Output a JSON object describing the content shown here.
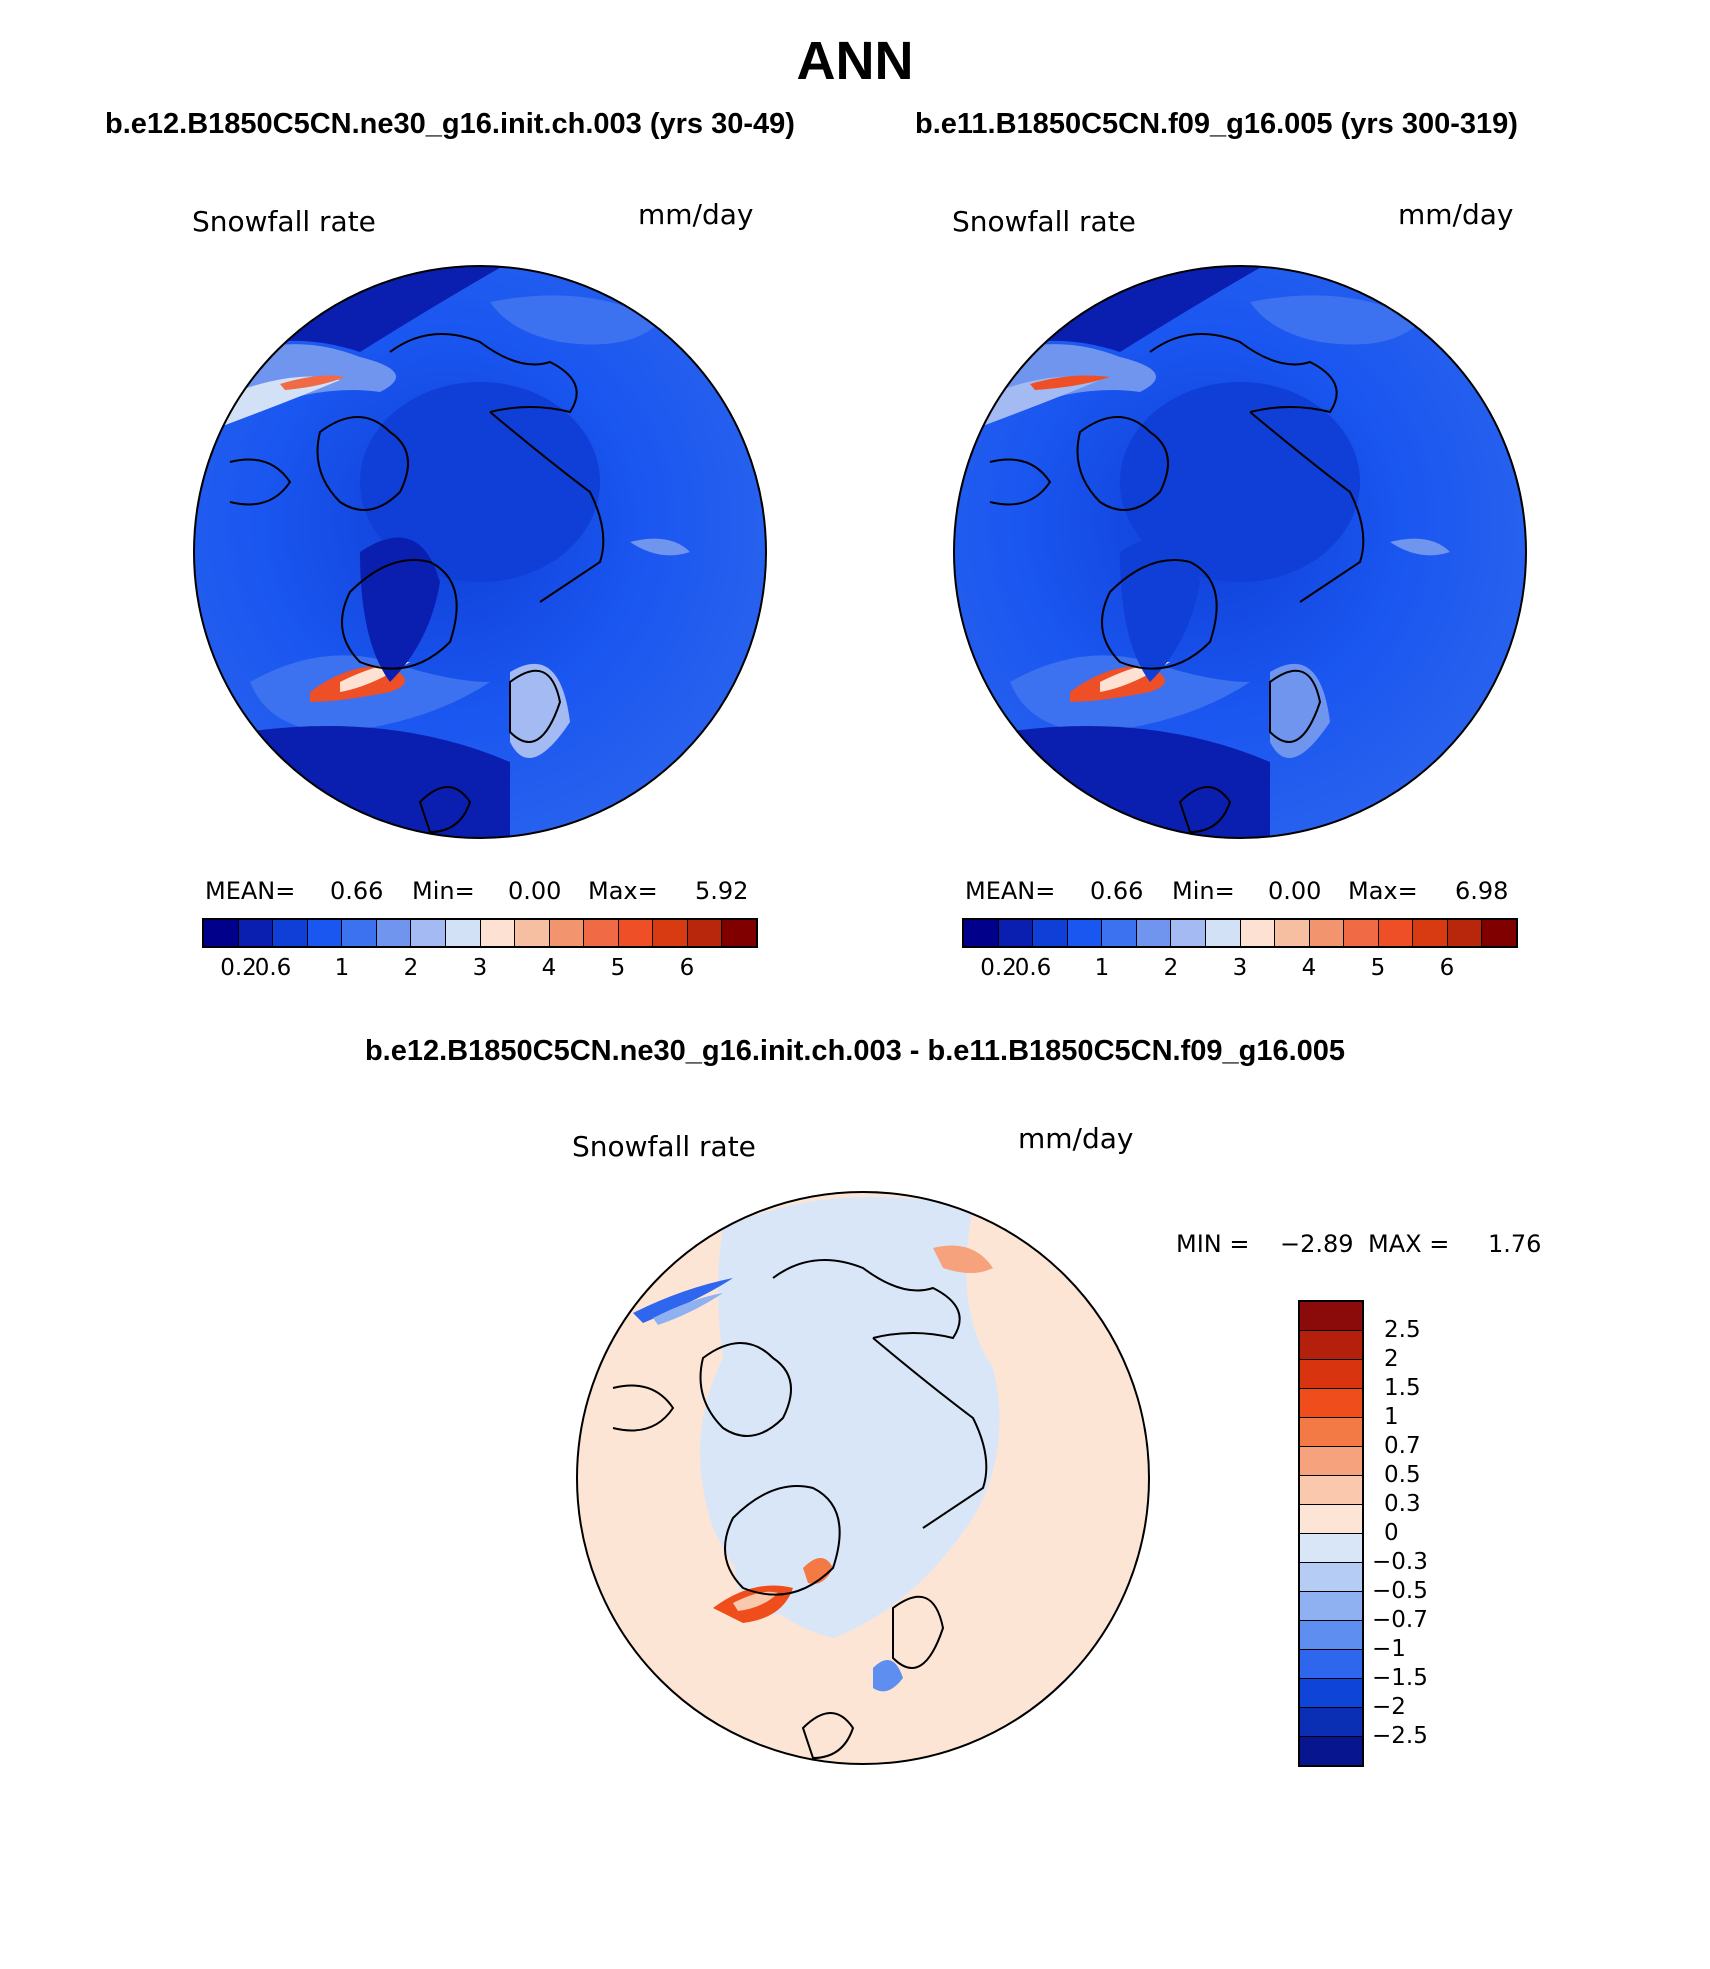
{
  "figure": {
    "title": "ANN",
    "diff_title": "b.e12.B1850C5CN.ne30_g16.init.ch.003 - b.e11.B1850C5CN.f09_g16.005"
  },
  "panels": [
    {
      "run_title": "b.e12.B1850C5CN.ne30_g16.init.ch.003 (yrs 30-49)",
      "variable": "Snowfall rate",
      "units": "mm/day",
      "mean_label": "MEAN=",
      "mean": "0.66",
      "min_label": "Min=",
      "min": "0.00",
      "max_label": "Max=",
      "max": "5.92"
    },
    {
      "run_title": "b.e11.B1850C5CN.f09_g16.005 (yrs 300-319)",
      "variable": "Snowfall rate",
      "units": "mm/day",
      "mean_label": "MEAN=",
      "mean": "0.66",
      "min_label": "Min=",
      "min": "0.00",
      "max_label": "Max=",
      "max": "6.98"
    }
  ],
  "diff_panel": {
    "variable": "Snowfall rate",
    "units": "mm/day",
    "min_label": "MIN =",
    "min": "−2.89",
    "max_label": "MAX =",
    "max": "1.76"
  },
  "colorbar_main": {
    "colors": [
      "#00008b",
      "#0a1fb0",
      "#0f3fd6",
      "#1a56f0",
      "#3c72f0",
      "#6f95ef",
      "#a3bbf2",
      "#d3e1f7",
      "#fde2d3",
      "#f7bfa2",
      "#f2946e",
      "#f06a45",
      "#ee4f26",
      "#d83a12",
      "#b8260c",
      "#800000"
    ],
    "tick_labels": [
      "0.2",
      "0.6",
      "1",
      "2",
      "3",
      "4",
      "5",
      "6"
    ],
    "tick_boundaries": [
      1,
      2,
      4,
      6,
      8,
      10,
      12,
      14
    ]
  },
  "colorbar_diff": {
    "colors_top_to_bottom": [
      "#8b0a0a",
      "#b5200c",
      "#d8340f",
      "#ef4d1c",
      "#f47a45",
      "#f6a27c",
      "#fac8ad",
      "#fde5d5",
      "#d9e6f8",
      "#b5cdf4",
      "#8fb1f1",
      "#5e8ff0",
      "#2e66ee",
      "#0f44d8",
      "#0a2fb4",
      "#07168f"
    ],
    "tick_labels": [
      "2.5",
      "2",
      "1.5",
      "1",
      "0.7",
      "0.5",
      "0.3",
      "0",
      "−0.3",
      "−0.5",
      "−0.7",
      "−1",
      "−1.5",
      "−2",
      "−2.5"
    ]
  }
}
